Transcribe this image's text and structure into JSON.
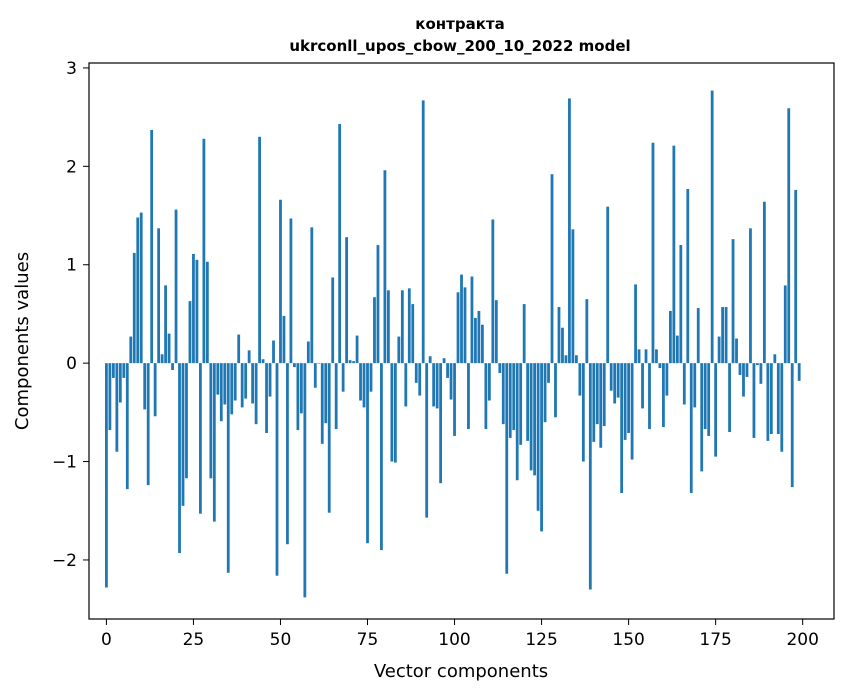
{
  "chart_data": {
    "type": "bar",
    "title": "контракта",
    "subtitle": "ukrconll_upos_cbow_200_10_2022 model",
    "xlabel": "Vector components",
    "ylabel": "Components values",
    "xlim": [
      -5,
      209
    ],
    "ylim": [
      -2.6,
      3.05
    ],
    "xticks": [
      0,
      25,
      50,
      75,
      100,
      125,
      150,
      175,
      200
    ],
    "yticks": [
      -2,
      -1,
      0,
      1,
      2,
      3
    ],
    "ytick_labels": [
      "−2",
      "−1",
      "0",
      "1",
      "2",
      "3"
    ],
    "bar_color": "#1f77b4",
    "grid": false,
    "x": [
      0,
      1,
      2,
      3,
      4,
      5,
      6,
      7,
      8,
      9,
      10,
      11,
      12,
      13,
      14,
      15,
      16,
      17,
      18,
      19,
      20,
      21,
      22,
      23,
      24,
      25,
      26,
      27,
      28,
      29,
      30,
      31,
      32,
      33,
      34,
      35,
      36,
      37,
      38,
      39,
      40,
      41,
      42,
      43,
      44,
      45,
      46,
      47,
      48,
      49,
      50,
      51,
      52,
      53,
      54,
      55,
      56,
      57,
      58,
      59,
      60,
      61,
      62,
      63,
      64,
      65,
      66,
      67,
      68,
      69,
      70,
      71,
      72,
      73,
      74,
      75,
      76,
      77,
      78,
      79,
      80,
      81,
      82,
      83,
      84,
      85,
      86,
      87,
      88,
      89,
      90,
      91,
      92,
      93,
      94,
      95,
      96,
      97,
      98,
      99,
      100,
      101,
      102,
      103,
      104,
      105,
      106,
      107,
      108,
      109,
      110,
      111,
      112,
      113,
      114,
      115,
      116,
      117,
      118,
      119,
      120,
      121,
      122,
      123,
      124,
      125,
      126,
      127,
      128,
      129,
      130,
      131,
      132,
      133,
      134,
      135,
      136,
      137,
      138,
      139,
      140,
      141,
      142,
      143,
      144,
      145,
      146,
      147,
      148,
      149,
      150,
      151,
      152,
      153,
      154,
      155,
      156,
      157,
      158,
      159,
      160,
      161,
      162,
      163,
      164,
      165,
      166,
      167,
      168,
      169,
      170,
      171,
      172,
      173,
      174,
      175,
      176,
      177,
      178,
      179,
      180,
      181,
      182,
      183,
      184,
      185,
      186,
      187,
      188,
      189,
      190,
      191,
      192,
      193,
      194,
      195,
      196,
      197,
      198,
      199
    ],
    "values": [
      -2.28,
      -0.68,
      -0.15,
      -0.9,
      -0.4,
      -0.15,
      -1.28,
      0.27,
      1.12,
      1.48,
      1.53,
      -0.47,
      -1.24,
      2.37,
      -0.54,
      1.37,
      0.09,
      0.79,
      0.3,
      -0.07,
      1.56,
      -1.93,
      -1.45,
      -1.17,
      0.63,
      1.11,
      1.05,
      -1.53,
      2.28,
      1.03,
      -1.17,
      -1.61,
      -0.32,
      -0.59,
      -0.42,
      -2.13,
      -0.52,
      -0.38,
      0.29,
      -0.45,
      -0.36,
      0.13,
      -0.41,
      -0.62,
      2.3,
      0.04,
      -0.71,
      -0.34,
      0.23,
      -2.16,
      1.66,
      0.48,
      -1.84,
      1.47,
      -0.04,
      -0.68,
      -0.51,
      -2.38,
      0.22,
      1.38,
      -0.25,
      0.0,
      -0.82,
      -0.61,
      -1.52,
      0.87,
      -0.67,
      2.43,
      -0.29,
      1.28,
      0.03,
      0.02,
      0.28,
      -0.38,
      -0.45,
      -1.83,
      -0.29,
      0.67,
      1.2,
      -1.9,
      1.96,
      0.74,
      -1.0,
      -1.01,
      0.27,
      0.74,
      -0.44,
      0.76,
      0.6,
      -0.2,
      -0.33,
      2.67,
      -1.57,
      0.07,
      -0.44,
      -0.46,
      -1.22,
      0.05,
      -0.15,
      -0.37,
      -0.74,
      0.72,
      0.9,
      0.77,
      -0.67,
      0.88,
      0.46,
      0.53,
      0.39,
      -0.67,
      -0.38,
      1.46,
      0.64,
      -0.1,
      -0.62,
      -2.14,
      -0.76,
      -0.68,
      -1.19,
      -0.83,
      0.6,
      -0.79,
      -1.09,
      -1.14,
      -1.5,
      -1.71,
      -0.6,
      -0.2,
      1.92,
      -0.55,
      0.57,
      0.36,
      0.08,
      2.69,
      1.36,
      0.08,
      -0.33,
      -1.0,
      0.65,
      -2.3,
      -0.8,
      -0.62,
      -0.86,
      -0.64,
      1.59,
      -0.28,
      -0.41,
      -0.35,
      -1.32,
      -0.78,
      -0.71,
      -0.98,
      0.8,
      0.14,
      -0.46,
      0.14,
      -0.67,
      2.24,
      0.14,
      -0.05,
      -0.65,
      -0.33,
      0.53,
      2.21,
      0.28,
      1.2,
      -0.42,
      1.77,
      -1.32,
      -0.45,
      0.56,
      -1.1,
      -0.67,
      -0.74,
      2.77,
      -0.95,
      0.27,
      0.57,
      0.57,
      -0.7,
      1.26,
      0.25,
      -0.12,
      -0.34,
      -0.14,
      1.37,
      -0.76,
      -0.02,
      -0.21,
      1.64,
      -0.79,
      -0.72,
      0.09,
      -0.72,
      -0.9,
      0.79,
      2.59,
      -1.26,
      1.76,
      -0.18
    ]
  }
}
